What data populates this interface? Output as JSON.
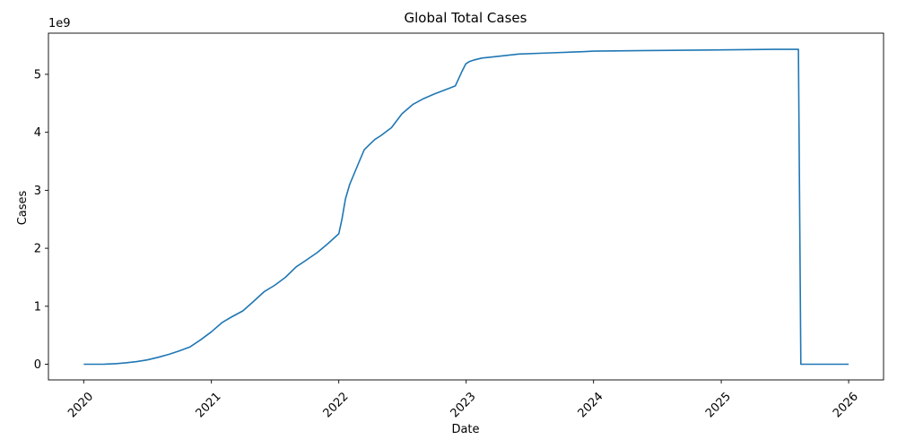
{
  "chart_data": {
    "type": "line",
    "title": "Global Total Cases",
    "xlabel": "Date",
    "ylabel": "Cases",
    "y_scale_label": "1e9",
    "x_ticks": [
      "2020",
      "2021",
      "2022",
      "2023",
      "2024",
      "2025",
      "2026"
    ],
    "y_ticks": [
      "0",
      "1",
      "2",
      "3",
      "4",
      "5"
    ],
    "xlim": [
      "2019-09-22",
      "2026-04-11"
    ],
    "ylim": [
      -0.27,
      5.71
    ],
    "line_color": "#1f77b4",
    "grid": false,
    "legend": "none",
    "series": [
      {
        "x": [
          "2020-01-01",
          "2020-03-01",
          "2020-04-01",
          "2020-05-01",
          "2020-06-01",
          "2020-07-01",
          "2020-08-01",
          "2020-09-01",
          "2020-10-01",
          "2020-11-01",
          "2020-12-01",
          "2021-01-01",
          "2021-02-01",
          "2021-03-01",
          "2021-04-01",
          "2021-05-01",
          "2021-06-01",
          "2021-07-01",
          "2021-08-01",
          "2021-09-01",
          "2021-10-01",
          "2021-11-01",
          "2021-12-01",
          "2022-01-01",
          "2022-01-10",
          "2022-01-20",
          "2022-02-01",
          "2022-02-15",
          "2022-03-01",
          "2022-03-15",
          "2022-04-01",
          "2022-04-15",
          "2022-05-01",
          "2022-06-01",
          "2022-07-01",
          "2022-08-01",
          "2022-09-01",
          "2022-10-01",
          "2022-11-01",
          "2022-12-01",
          "2022-12-20",
          "2022-12-31",
          "2023-01-10",
          "2023-01-25",
          "2023-02-15",
          "2023-04-01",
          "2023-06-01",
          "2023-09-01",
          "2023-12-01",
          "2024-01-01",
          "2024-06-01",
          "2024-12-01",
          "2025-06-01",
          "2025-08-10",
          "2025-08-17",
          "2025-10-01",
          "2026-01-01"
        ],
        "y": [
          0.0,
          0.002,
          0.01,
          0.025,
          0.045,
          0.075,
          0.12,
          0.17,
          0.23,
          0.3,
          0.42,
          0.56,
          0.72,
          0.82,
          0.92,
          1.08,
          1.25,
          1.36,
          1.5,
          1.68,
          1.8,
          1.93,
          2.08,
          2.25,
          2.5,
          2.85,
          3.1,
          3.3,
          3.5,
          3.7,
          3.8,
          3.88,
          3.94,
          4.08,
          4.32,
          4.48,
          4.58,
          4.66,
          4.73,
          4.8,
          5.05,
          5.18,
          5.22,
          5.25,
          5.28,
          5.31,
          5.35,
          5.37,
          5.39,
          5.4,
          5.41,
          5.42,
          5.43,
          5.43,
          0.0,
          0.0,
          0.0
        ]
      }
    ]
  }
}
